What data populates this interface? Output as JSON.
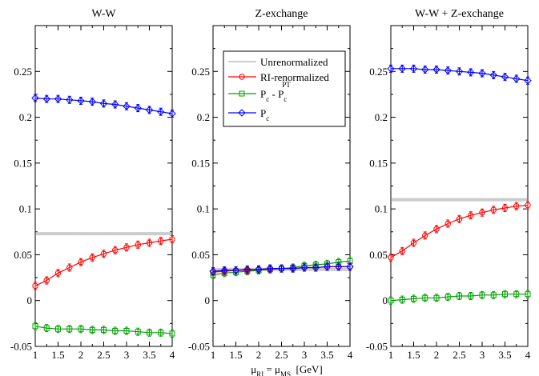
{
  "chart_data": {
    "type": "line",
    "xlabel_parts": {
      "mu1": "μ",
      "sub1": "RI",
      "eq": " = μ",
      "sub2": "MS",
      "unit": "  [GeV]"
    },
    "x_ticks": [
      "1",
      "1.5",
      "2",
      "2.5",
      "3",
      "3.5",
      "4"
    ],
    "y_ticks": [
      "-0.05",
      "0",
      "0.05",
      "0.1",
      "0.15",
      "0.2",
      "0.25"
    ],
    "xlim": [
      1,
      4
    ],
    "ylim": [
      -0.05,
      0.3
    ],
    "legend": {
      "placement": "top-right of middle panel",
      "entries": [
        {
          "key": "unren",
          "label": "Unrenormalized"
        },
        {
          "key": "ri",
          "label": "RI-renormalized"
        },
        {
          "key": "diff",
          "label_main": "P",
          "label_sub": "c",
          "label_mid": " - P",
          "label_sub2": "c",
          "label_sup2": "PT"
        },
        {
          "key": "pc",
          "label_main": "P",
          "label_sub": "c"
        }
      ]
    },
    "colors": {
      "unren": "#cccccc",
      "ri": "#ff0000",
      "diff": "#00a000",
      "pc": "#0000ff"
    },
    "x": [
      1.0,
      1.25,
      1.5,
      1.75,
      2.0,
      2.25,
      2.5,
      2.75,
      3.0,
      3.25,
      3.5,
      3.75,
      4.0
    ],
    "panels": [
      {
        "title": "W-W",
        "unrenormalized": 0.073,
        "series": {
          "ri": [
            0.016,
            0.022,
            0.03,
            0.036,
            0.042,
            0.047,
            0.051,
            0.055,
            0.058,
            0.061,
            0.063,
            0.065,
            0.067
          ],
          "diff": [
            -0.028,
            -0.03,
            -0.031,
            -0.031,
            -0.031,
            -0.032,
            -0.032,
            -0.033,
            -0.033,
            -0.034,
            -0.035,
            -0.035,
            -0.036
          ],
          "pc": [
            0.221,
            0.22,
            0.22,
            0.219,
            0.218,
            0.217,
            0.215,
            0.214,
            0.212,
            0.21,
            0.208,
            0.206,
            0.204
          ]
        }
      },
      {
        "title": "Z-exchange",
        "unrenormalized": 0.034,
        "series": {
          "ri": [
            0.031,
            0.032,
            0.033,
            0.033,
            0.034,
            0.034,
            0.035,
            0.035,
            0.036,
            0.036,
            0.037,
            0.037,
            0.037
          ],
          "diff": [
            0.028,
            0.03,
            0.031,
            0.032,
            0.033,
            0.034,
            0.035,
            0.036,
            0.038,
            0.039,
            0.04,
            0.042,
            0.043
          ],
          "pc": [
            0.032,
            0.033,
            0.033,
            0.034,
            0.034,
            0.035,
            0.035,
            0.035,
            0.036,
            0.036,
            0.037,
            0.037,
            0.037
          ]
        }
      },
      {
        "title": "W-W + Z-exchange",
        "unrenormalized": 0.11,
        "series": {
          "ri": [
            0.047,
            0.054,
            0.063,
            0.071,
            0.078,
            0.084,
            0.089,
            0.093,
            0.096,
            0.099,
            0.101,
            0.103,
            0.104
          ],
          "diff": [
            0.0,
            0.001,
            0.002,
            0.003,
            0.003,
            0.004,
            0.005,
            0.005,
            0.006,
            0.006,
            0.007,
            0.007,
            0.007
          ],
          "pc": [
            0.253,
            0.253,
            0.253,
            0.252,
            0.252,
            0.251,
            0.25,
            0.249,
            0.248,
            0.246,
            0.244,
            0.242,
            0.24
          ]
        }
      }
    ]
  }
}
